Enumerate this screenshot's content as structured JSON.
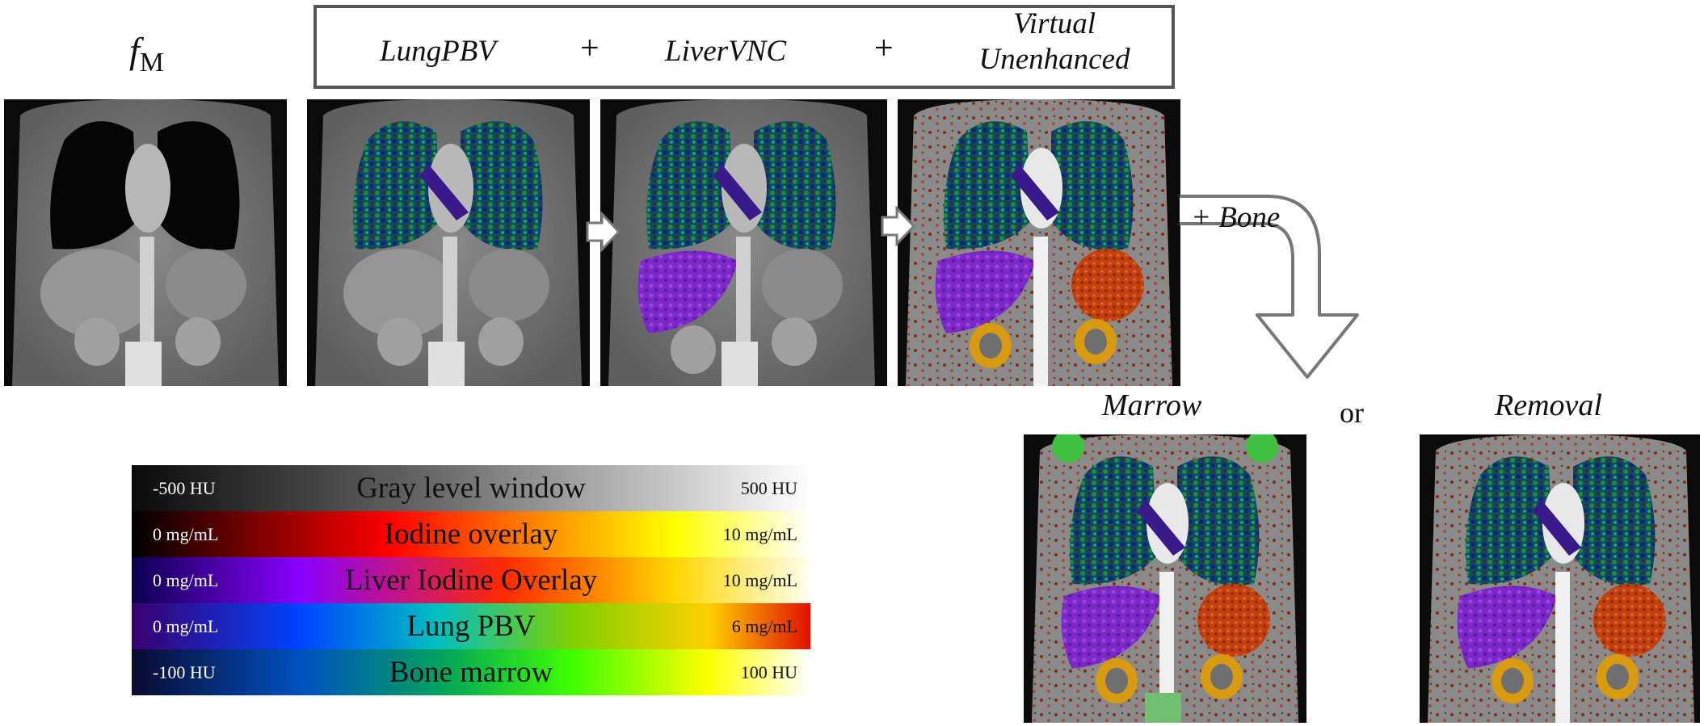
{
  "header": {
    "fm_label": "f",
    "fm_subscript": "M",
    "lung_pbv": "LungPBV",
    "plus_1": "+",
    "liver_vnc": "LiverVNC",
    "plus_2": "+",
    "virtual_unenhanced_line1": "Virtual",
    "virtual_unenhanced_line2": "Unenhanced"
  },
  "bone_branch": {
    "label": "+ Bone",
    "marrow_label": "Marrow",
    "or_label": "or",
    "removal_label": "Removal"
  },
  "legend": [
    {
      "title": "Gray level window",
      "low": "-500 HU",
      "high": "500 HU"
    },
    {
      "title": "Iodine overlay",
      "low": "0 mg/mL",
      "high": "10 mg/mL"
    },
    {
      "title": "Liver Iodine Overlay",
      "low": "0 mg/mL",
      "high": "10 mg/mL"
    },
    {
      "title": "Lung PBV",
      "low": "0 mg/mL",
      "high": "6 mg/mL"
    },
    {
      "title": "Bone marrow",
      "low": "-100 HU",
      "high": "100 HU"
    }
  ],
  "colors": {
    "gray_window": [
      "#0a0a0a",
      "#ffffff"
    ],
    "iodine": [
      "#000000",
      "#ff0000",
      "#ffff00",
      "#ffffff"
    ],
    "liver_iodine": [
      "#0a0050",
      "#8a00ff",
      "#ff2a00",
      "#ffd700",
      "#fffff0"
    ],
    "lung_pbv": [
      "#3a0070",
      "#0044ff",
      "#00c0c0",
      "#80d000",
      "#ffd000",
      "#e01000"
    ],
    "bone_marrow": [
      "#0a0a30",
      "#0050c0",
      "#00a060",
      "#40ff00",
      "#ffff00",
      "#ffffff"
    ],
    "frame": "#555555"
  }
}
